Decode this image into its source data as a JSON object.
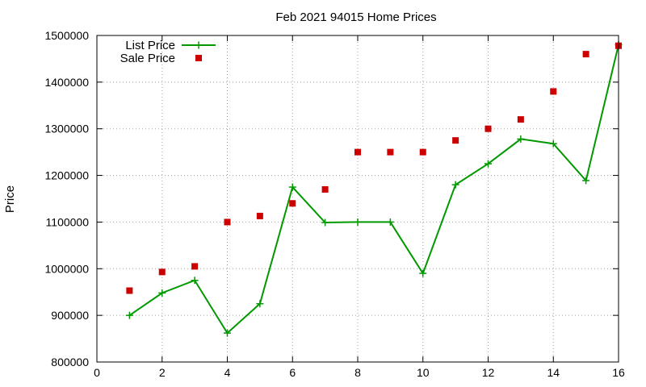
{
  "chart_data": {
    "type": "line",
    "title": "Feb 2021 94015 Home Prices",
    "xlabel": "",
    "ylabel": "Price",
    "xlim": [
      0,
      16
    ],
    "ylim": [
      800000,
      1500000
    ],
    "xticks": [
      0,
      2,
      4,
      6,
      8,
      10,
      12,
      14,
      16
    ],
    "yticks": [
      800000,
      900000,
      1000000,
      1100000,
      1200000,
      1300000,
      1400000,
      1500000
    ],
    "grid": true,
    "legend_position": "top-left",
    "series": [
      {
        "name": "List Price",
        "style": "line+cross",
        "color": "#009900",
        "x": [
          1,
          2,
          3,
          4,
          5,
          6,
          7,
          8,
          9,
          10,
          11,
          12,
          13,
          14,
          15,
          16
        ],
        "y": [
          900000,
          948000,
          975000,
          862000,
          925000,
          1175000,
          1099000,
          1100000,
          1100000,
          990000,
          1180000,
          1225000,
          1278000,
          1268000,
          1189000,
          1480000
        ]
      },
      {
        "name": "Sale Price",
        "style": "square",
        "color": "#cc0000",
        "x": [
          1,
          2,
          3,
          4,
          5,
          6,
          7,
          8,
          9,
          10,
          11,
          12,
          13,
          14,
          15,
          16
        ],
        "y": [
          953000,
          993000,
          1005000,
          1100000,
          1113000,
          1140000,
          1170000,
          1250000,
          1250000,
          1250000,
          1275000,
          1300000,
          1320000,
          1380000,
          1460000,
          1478000
        ]
      }
    ]
  }
}
